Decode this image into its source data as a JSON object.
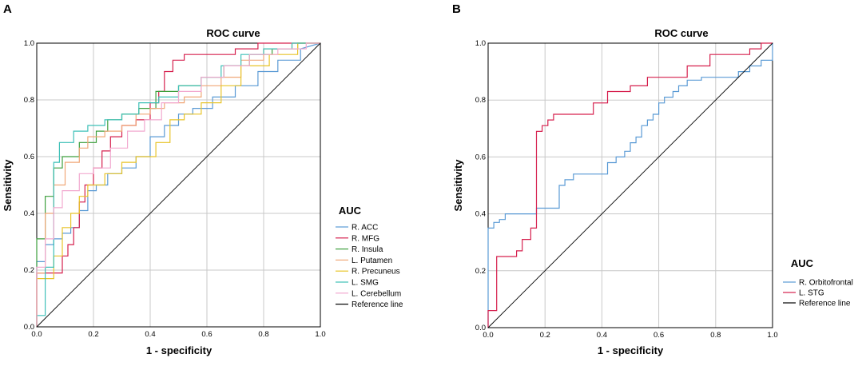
{
  "chart_data": [
    {
      "panel": "A",
      "type": "line",
      "title": "ROC curve",
      "xlabel": "1 - specificity",
      "ylabel": "Sensitivity",
      "xlim": [
        0,
        1
      ],
      "ylim": [
        0,
        1
      ],
      "ticks": [
        "0.0",
        "0.2",
        "0.4",
        "0.6",
        "0.8",
        "1.0"
      ],
      "legend_title": "AUC",
      "series": [
        {
          "name": "R. ACC",
          "color": "#5b9bd5",
          "x": [
            0,
            0,
            0.03,
            0.03,
            0.06,
            0.06,
            0.09,
            0.09,
            0.12,
            0.12,
            0.15,
            0.15,
            0.18,
            0.18,
            0.21,
            0.21,
            0.25,
            0.25,
            0.3,
            0.3,
            0.35,
            0.35,
            0.4,
            0.4,
            0.45,
            0.45,
            0.5,
            0.5,
            0.55,
            0.55,
            0.62,
            0.62,
            0.7,
            0.7,
            0.78,
            0.78,
            0.85,
            0.85,
            0.93,
            0.93,
            1.0
          ],
          "y": [
            0,
            0.23,
            0.23,
            0.29,
            0.29,
            0.31,
            0.31,
            0.33,
            0.33,
            0.35,
            0.35,
            0.41,
            0.41,
            0.48,
            0.48,
            0.5,
            0.5,
            0.54,
            0.54,
            0.56,
            0.56,
            0.6,
            0.6,
            0.67,
            0.67,
            0.71,
            0.71,
            0.75,
            0.75,
            0.77,
            0.77,
            0.81,
            0.81,
            0.85,
            0.85,
            0.9,
            0.9,
            0.94,
            0.94,
            0.98,
            1.0
          ]
        },
        {
          "name": "R. MFG",
          "color": "#d6204e",
          "x": [
            0,
            0,
            0.09,
            0.09,
            0.11,
            0.11,
            0.13,
            0.13,
            0.15,
            0.15,
            0.17,
            0.17,
            0.2,
            0.2,
            0.23,
            0.23,
            0.26,
            0.26,
            0.3,
            0.3,
            0.35,
            0.35,
            0.4,
            0.4,
            0.43,
            0.43,
            0.45,
            0.45,
            0.48,
            0.48,
            0.52,
            0.52,
            0.7,
            0.7,
            0.78,
            0.78,
            0.85,
            0.85,
            1.0
          ],
          "y": [
            0,
            0.19,
            0.19,
            0.25,
            0.25,
            0.29,
            0.29,
            0.35,
            0.35,
            0.44,
            0.44,
            0.5,
            0.5,
            0.56,
            0.56,
            0.62,
            0.62,
            0.67,
            0.67,
            0.71,
            0.71,
            0.73,
            0.73,
            0.79,
            0.79,
            0.83,
            0.83,
            0.9,
            0.9,
            0.94,
            0.94,
            0.96,
            0.96,
            0.98,
            0.98,
            1.0,
            1.0,
            1.0,
            1.0
          ]
        },
        {
          "name": "R. Insula",
          "color": "#3d9f3d",
          "x": [
            0,
            0,
            0.03,
            0.03,
            0.06,
            0.06,
            0.09,
            0.09,
            0.15,
            0.15,
            0.21,
            0.21,
            0.25,
            0.25,
            0.3,
            0.3,
            0.36,
            0.36,
            0.42,
            0.42,
            0.5,
            0.5,
            0.58,
            0.58,
            0.66,
            0.66,
            0.75,
            0.75,
            0.83,
            0.83,
            0.92,
            0.92,
            1.0
          ],
          "y": [
            0,
            0.31,
            0.31,
            0.46,
            0.46,
            0.56,
            0.56,
            0.6,
            0.6,
            0.65,
            0.65,
            0.69,
            0.69,
            0.73,
            0.73,
            0.75,
            0.75,
            0.77,
            0.77,
            0.83,
            0.83,
            0.85,
            0.85,
            0.88,
            0.88,
            0.92,
            0.92,
            0.96,
            0.96,
            0.98,
            0.98,
            1.0,
            1.0
          ]
        },
        {
          "name": "L. Putamen",
          "color": "#f0a878",
          "x": [
            0,
            0,
            0.03,
            0.03,
            0.06,
            0.06,
            0.1,
            0.1,
            0.15,
            0.15,
            0.18,
            0.18,
            0.24,
            0.24,
            0.3,
            0.3,
            0.35,
            0.35,
            0.4,
            0.4,
            0.45,
            0.45,
            0.52,
            0.52,
            0.58,
            0.58,
            0.65,
            0.65,
            0.72,
            0.72,
            0.8,
            0.8,
            0.9,
            0.9,
            1.0
          ],
          "y": [
            0,
            0.19,
            0.19,
            0.4,
            0.4,
            0.5,
            0.5,
            0.58,
            0.58,
            0.63,
            0.63,
            0.67,
            0.67,
            0.69,
            0.69,
            0.71,
            0.71,
            0.75,
            0.75,
            0.77,
            0.77,
            0.79,
            0.79,
            0.81,
            0.81,
            0.85,
            0.85,
            0.88,
            0.88,
            0.94,
            0.94,
            0.98,
            0.98,
            1.0,
            1.0
          ]
        },
        {
          "name": "R. Precuneus",
          "color": "#e8c42a",
          "x": [
            0,
            0,
            0.06,
            0.06,
            0.09,
            0.09,
            0.12,
            0.12,
            0.15,
            0.15,
            0.18,
            0.18,
            0.24,
            0.24,
            0.3,
            0.3,
            0.35,
            0.35,
            0.42,
            0.42,
            0.47,
            0.47,
            0.52,
            0.52,
            0.58,
            0.58,
            0.65,
            0.65,
            0.72,
            0.72,
            0.82,
            0.82,
            0.92,
            0.92,
            1.0
          ],
          "y": [
            0,
            0.17,
            0.17,
            0.25,
            0.25,
            0.35,
            0.35,
            0.4,
            0.4,
            0.46,
            0.46,
            0.5,
            0.5,
            0.54,
            0.54,
            0.58,
            0.58,
            0.6,
            0.6,
            0.65,
            0.65,
            0.73,
            0.73,
            0.75,
            0.75,
            0.79,
            0.79,
            0.85,
            0.85,
            0.92,
            0.92,
            0.96,
            0.96,
            1.0,
            1.0
          ]
        },
        {
          "name": "L. SMG",
          "color": "#3fc0b8",
          "x": [
            0,
            0,
            0.03,
            0.03,
            0.06,
            0.06,
            0.08,
            0.08,
            0.13,
            0.13,
            0.18,
            0.18,
            0.24,
            0.24,
            0.3,
            0.3,
            0.36,
            0.36,
            0.43,
            0.43,
            0.5,
            0.5,
            0.58,
            0.58,
            0.65,
            0.65,
            0.72,
            0.72,
            0.8,
            0.8,
            0.9,
            0.9,
            1.0
          ],
          "y": [
            0,
            0.04,
            0.04,
            0.21,
            0.21,
            0.58,
            0.58,
            0.65,
            0.65,
            0.69,
            0.69,
            0.71,
            0.71,
            0.73,
            0.73,
            0.75,
            0.75,
            0.79,
            0.79,
            0.81,
            0.81,
            0.85,
            0.85,
            0.88,
            0.88,
            0.92,
            0.92,
            0.96,
            0.96,
            0.98,
            0.98,
            1.0,
            1.0
          ]
        },
        {
          "name": "L. Cerebellum",
          "color": "#f2a9cf",
          "x": [
            0,
            0,
            0.03,
            0.03,
            0.06,
            0.06,
            0.09,
            0.09,
            0.15,
            0.15,
            0.2,
            0.2,
            0.26,
            0.26,
            0.32,
            0.32,
            0.38,
            0.38,
            0.44,
            0.44,
            0.5,
            0.5,
            0.58,
            0.58,
            0.66,
            0.66,
            0.75,
            0.75,
            0.85,
            0.85,
            0.95,
            0.95,
            1.0
          ],
          "y": [
            0,
            0.21,
            0.21,
            0.31,
            0.31,
            0.42,
            0.42,
            0.48,
            0.48,
            0.54,
            0.54,
            0.56,
            0.56,
            0.63,
            0.63,
            0.69,
            0.69,
            0.73,
            0.73,
            0.79,
            0.79,
            0.83,
            0.83,
            0.88,
            0.88,
            0.92,
            0.92,
            0.96,
            0.96,
            0.98,
            0.98,
            1.0,
            1.0
          ]
        },
        {
          "name": "Reference line",
          "color": "#000000",
          "x": [
            0,
            1
          ],
          "y": [
            0,
            1
          ]
        }
      ]
    },
    {
      "panel": "B",
      "type": "line",
      "title": "ROC curve",
      "xlabel": "1 - specificity",
      "ylabel": "Sensitivity",
      "xlim": [
        0,
        1
      ],
      "ylim": [
        0,
        1
      ],
      "ticks": [
        "0.0",
        "0.2",
        "0.4",
        "0.6",
        "0.8",
        "1.0"
      ],
      "legend_title": "AUC",
      "series": [
        {
          "name": "R. Orbitofrontal",
          "color": "#5b9bd5",
          "x": [
            0,
            0,
            0.02,
            0.02,
            0.04,
            0.04,
            0.06,
            0.06,
            0.1,
            0.1,
            0.17,
            0.17,
            0.25,
            0.25,
            0.27,
            0.27,
            0.3,
            0.3,
            0.33,
            0.33,
            0.42,
            0.42,
            0.45,
            0.45,
            0.48,
            0.48,
            0.5,
            0.5,
            0.52,
            0.52,
            0.54,
            0.54,
            0.56,
            0.56,
            0.58,
            0.58,
            0.6,
            0.6,
            0.62,
            0.62,
            0.65,
            0.65,
            0.67,
            0.67,
            0.7,
            0.7,
            0.75,
            0.75,
            0.88,
            0.88,
            0.92,
            0.92,
            0.96,
            0.96,
            1.0,
            1.0
          ],
          "y": [
            0,
            0.35,
            0.35,
            0.37,
            0.37,
            0.38,
            0.38,
            0.4,
            0.4,
            0.4,
            0.4,
            0.42,
            0.42,
            0.5,
            0.5,
            0.52,
            0.52,
            0.54,
            0.54,
            0.54,
            0.54,
            0.58,
            0.58,
            0.6,
            0.6,
            0.62,
            0.62,
            0.65,
            0.65,
            0.67,
            0.67,
            0.71,
            0.71,
            0.73,
            0.73,
            0.75,
            0.75,
            0.79,
            0.79,
            0.81,
            0.81,
            0.83,
            0.83,
            0.85,
            0.85,
            0.87,
            0.87,
            0.88,
            0.88,
            0.9,
            0.9,
            0.92,
            0.92,
            0.94,
            0.94,
            1.0
          ]
        },
        {
          "name": "L. STG",
          "color": "#d6204e",
          "x": [
            0,
            0,
            0.03,
            0.03,
            0.1,
            0.1,
            0.12,
            0.12,
            0.15,
            0.15,
            0.17,
            0.17,
            0.19,
            0.19,
            0.21,
            0.21,
            0.23,
            0.23,
            0.27,
            0.27,
            0.37,
            0.37,
            0.42,
            0.42,
            0.46,
            0.46,
            0.5,
            0.5,
            0.52,
            0.52,
            0.56,
            0.56,
            0.64,
            0.64,
            0.7,
            0.7,
            0.78,
            0.78,
            0.85,
            0.85,
            0.92,
            0.92,
            0.96,
            0.96,
            1.0
          ],
          "y": [
            0,
            0.06,
            0.06,
            0.25,
            0.25,
            0.27,
            0.27,
            0.31,
            0.31,
            0.35,
            0.35,
            0.69,
            0.69,
            0.71,
            0.71,
            0.73,
            0.73,
            0.75,
            0.75,
            0.75,
            0.75,
            0.79,
            0.79,
            0.83,
            0.83,
            0.83,
            0.83,
            0.85,
            0.85,
            0.85,
            0.85,
            0.88,
            0.88,
            0.88,
            0.88,
            0.92,
            0.92,
            0.96,
            0.96,
            0.96,
            0.96,
            0.98,
            0.98,
            1.0,
            1.0
          ]
        },
        {
          "name": "Reference line",
          "color": "#000000",
          "x": [
            0,
            1
          ],
          "y": [
            0,
            1
          ]
        }
      ]
    }
  ]
}
